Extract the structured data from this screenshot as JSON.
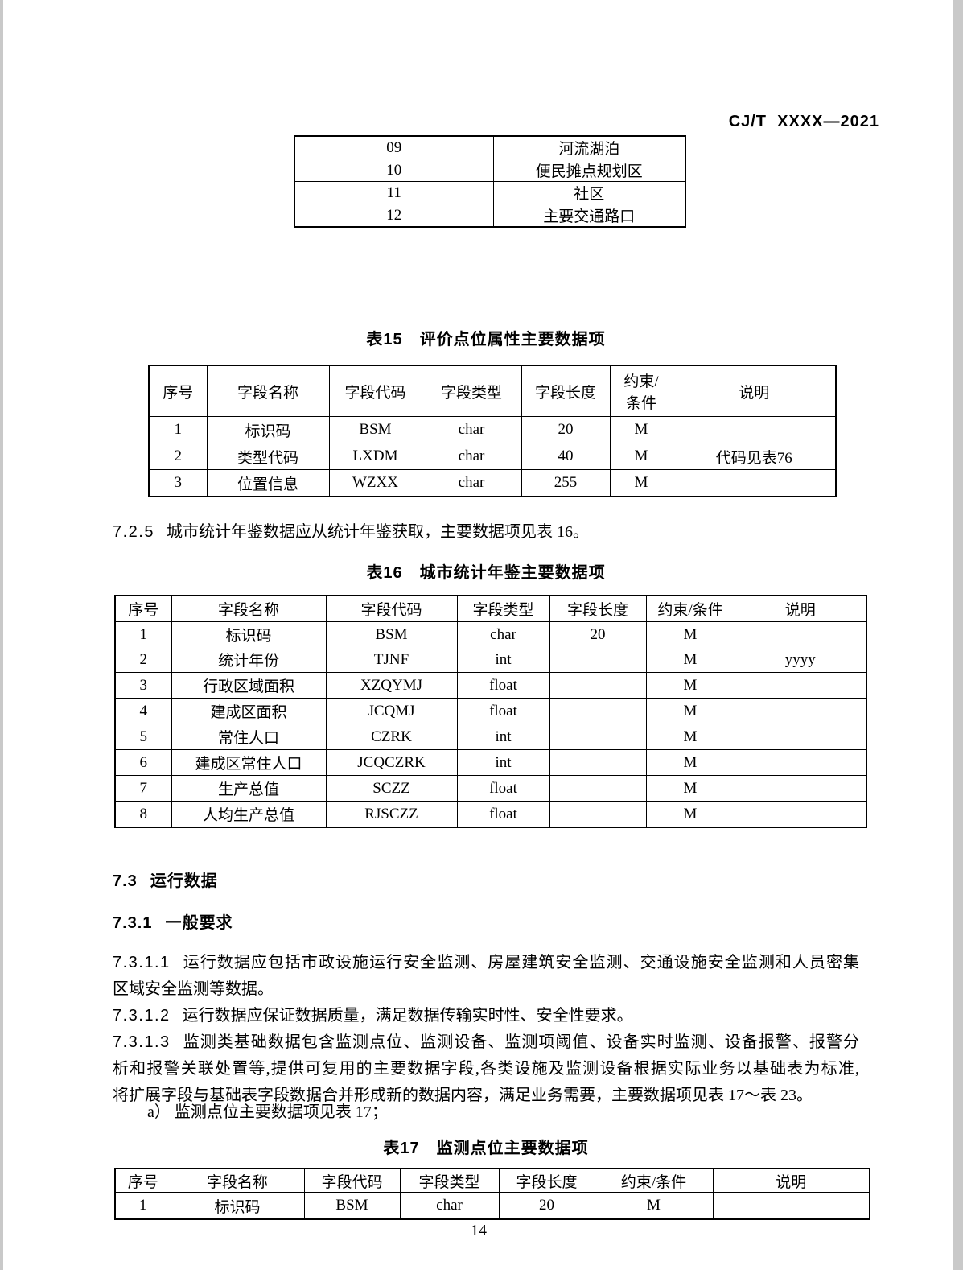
{
  "doc_code": "CJ/T  XXXX—2021",
  "page_number": "14",
  "colors": {
    "page_bg": "#ffffff",
    "text": "#000000",
    "table_border": "#000000",
    "scan_edge": "#c9c9c9"
  },
  "top_table": {
    "rows": [
      [
        "09",
        "河流湖泊"
      ],
      [
        "10",
        "便民摊点规划区"
      ],
      [
        "11",
        "社区"
      ],
      [
        "12",
        "主要交通路口"
      ]
    ]
  },
  "tables": {
    "t15": {
      "title": "表15　评价点位属性主要数据项",
      "header": [
        "序号",
        "字段名称",
        "字段代码",
        "字段类型",
        "字段长度",
        "约束/\n条件",
        "说明"
      ],
      "rows": [
        [
          "1",
          "标识码",
          "BSM",
          "char",
          "20",
          "M",
          ""
        ],
        [
          "2",
          "类型代码",
          "LXDM",
          "char",
          "40",
          "M",
          "代码见表76"
        ],
        [
          "3",
          "位置信息",
          "WZXX",
          "char",
          "255",
          "M",
          ""
        ]
      ]
    },
    "t16": {
      "title": "表16　城市统计年鉴主要数据项",
      "header": [
        "序号",
        "字段名称",
        "字段代码",
        "字段类型",
        "字段长度",
        "约束/条件",
        "说明"
      ],
      "no_divider_after": [
        0
      ],
      "rows": [
        [
          "1",
          "标识码",
          "BSM",
          "char",
          "20",
          "M",
          ""
        ],
        [
          "2",
          "统计年份",
          "TJNF",
          "int",
          "",
          "M",
          "yyyy"
        ],
        [
          "3",
          "行政区域面积",
          "XZQYMJ",
          "float",
          "",
          "M",
          ""
        ],
        [
          "4",
          "建成区面积",
          "JCQMJ",
          "float",
          "",
          "M",
          ""
        ],
        [
          "5",
          "常住人口",
          "CZRK",
          "int",
          "",
          "M",
          ""
        ],
        [
          "6",
          "建成区常住人口",
          "JCQCZRK",
          "int",
          "",
          "M",
          ""
        ],
        [
          "7",
          "生产总值",
          "SCZZ",
          "float",
          "",
          "M",
          ""
        ],
        [
          "8",
          "人均生产总值",
          "RJSCZZ",
          "float",
          "",
          "M",
          ""
        ]
      ]
    },
    "t17": {
      "title": "表17　监测点位主要数据项",
      "header": [
        "序号",
        "字段名称",
        "字段代码",
        "字段类型",
        "字段长度",
        "约束/条件",
        "说明"
      ],
      "rows": [
        [
          "1",
          "标识码",
          "BSM",
          "char",
          "20",
          "M",
          ""
        ]
      ]
    }
  },
  "body": {
    "c725": {
      "number": "7.2.5",
      "text": "城市统计年鉴数据应从统计年鉴获取，主要数据项见表 16。"
    },
    "h73": {
      "number": "7.3",
      "title": "运行数据"
    },
    "h731": {
      "number": "7.3.1",
      "title": "一般要求"
    },
    "c7311": {
      "number": "7.3.1.1",
      "line1": "运行数据应包括市政设施运行安全监测、房屋建筑安全监测、交通设施安全监测和人员密集",
      "line2": "区域安全监测等数据。"
    },
    "c7312": {
      "number": "7.3.1.2",
      "text": "运行数据应保证数据质量，满足数据传输实时性、安全性要求。"
    },
    "c7313": {
      "number": "7.3.1.3",
      "line1": "监测类基础数据包含监测点位、监测设备、监测项阈值、设备实时监测、设备报警、报警分",
      "line2": "析和报警关联处置等,提供可复用的主要数据字段,各类设施及监测设备根据实际业务以基础表为标准,",
      "line3": "将扩展字段与基础表字段数据合并形成新的数据内容，满足业务需要，主要数据项见表 17～表 23。"
    },
    "item_a": "a） 监测点位主要数据项见表 17；"
  }
}
